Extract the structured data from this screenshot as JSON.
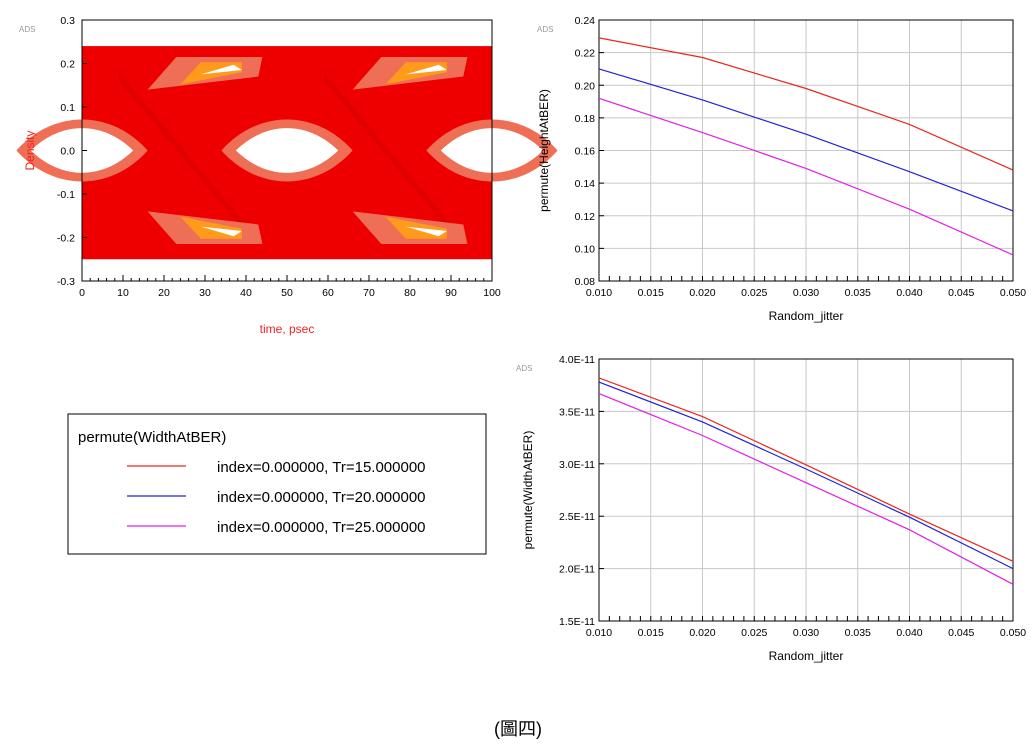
{
  "chart_data": [
    {
      "id": "eye",
      "type": "eye-diagram",
      "badge": "ADS",
      "xlabel": "time, psec",
      "ylabel": "Density",
      "xlim": [
        0,
        100
      ],
      "ylim": [
        -0.3,
        0.3
      ],
      "xticks": [
        0,
        10,
        20,
        30,
        40,
        50,
        60,
        70,
        80,
        90,
        100
      ],
      "yticks": [
        -0.3,
        -0.2,
        -0.1,
        0.0,
        0.1,
        0.2,
        0.3
      ],
      "ytick_labels": [
        "-0.3",
        "-0.2",
        "-0.1",
        "0.0",
        "0.1",
        "0.2",
        "0.3"
      ],
      "signal_levels": [
        -0.25,
        0.24
      ],
      "crossings": [
        25,
        75
      ],
      "colors": {
        "trace": "#ee0000",
        "density_mid": "#ee6f55",
        "density_high": "#ff9a1a",
        "label": "#ee2222"
      }
    },
    {
      "id": "height",
      "type": "line",
      "badge": "ADS",
      "xlabel": "Random_jitter",
      "ylabel": "permute(HeightAtBER)",
      "xlim": [
        0.01,
        0.05
      ],
      "ylim": [
        0.08,
        0.24
      ],
      "xticks": [
        0.01,
        0.015,
        0.02,
        0.025,
        0.03,
        0.035,
        0.04,
        0.045,
        0.05
      ],
      "xtick_labels": [
        "0.010",
        "0.015",
        "0.020",
        "0.025",
        "0.030",
        "0.035",
        "0.040",
        "0.045",
        "0.050"
      ],
      "yticks": [
        0.08,
        0.1,
        0.12,
        0.14,
        0.16,
        0.18,
        0.2,
        0.22,
        0.24
      ],
      "ytick_labels": [
        "0.08",
        "0.10",
        "0.12",
        "0.14",
        "0.16",
        "0.18",
        "0.20",
        "0.22",
        "0.24"
      ],
      "grid": true,
      "x": [
        0.01,
        0.02,
        0.03,
        0.04,
        0.05
      ],
      "series": [
        {
          "color": "#e8281e",
          "values": [
            0.229,
            0.217,
            0.198,
            0.176,
            0.148
          ]
        },
        {
          "color": "#2323d6",
          "values": [
            0.21,
            0.191,
            0.17,
            0.147,
            0.123
          ]
        },
        {
          "color": "#e31fe3",
          "values": [
            0.192,
            0.171,
            0.149,
            0.124,
            0.096
          ]
        }
      ]
    },
    {
      "id": "width",
      "type": "line",
      "badge": "ADS",
      "xlabel": "Random_jitter",
      "ylabel": "permute(WidthAtBER)",
      "xlim": [
        0.01,
        0.05
      ],
      "ylim": [
        1.5e-11,
        4e-11
      ],
      "xticks": [
        0.01,
        0.015,
        0.02,
        0.025,
        0.03,
        0.035,
        0.04,
        0.045,
        0.05
      ],
      "xtick_labels": [
        "0.010",
        "0.015",
        "0.020",
        "0.025",
        "0.030",
        "0.035",
        "0.040",
        "0.045",
        "0.050"
      ],
      "yticks": [
        1.5e-11,
        2e-11,
        2.5e-11,
        3e-11,
        3.5e-11,
        4e-11
      ],
      "ytick_labels": [
        "1.5E-11",
        "2.0E-11",
        "2.5E-11",
        "3.0E-11",
        "3.5E-11",
        "4.0E-11"
      ],
      "grid": true,
      "legend_placement": "left",
      "x": [
        0.01,
        0.02,
        0.03,
        0.04,
        0.05
      ],
      "series": [
        {
          "name": "index=0.000000, Tr=15.000000",
          "color": "#e8281e",
          "values": [
            3.82e-11,
            3.45e-11,
            2.99e-11,
            2.52e-11,
            2.07e-11
          ]
        },
        {
          "name": "index=0.000000, Tr=20.000000",
          "color": "#2323d6",
          "values": [
            3.78e-11,
            3.4e-11,
            2.95e-11,
            2.49e-11,
            2e-11
          ]
        },
        {
          "name": "index=0.000000, Tr=25.000000",
          "color": "#e31fe3",
          "values": [
            3.67e-11,
            3.27e-11,
            2.82e-11,
            2.37e-11,
            1.85e-11
          ]
        }
      ]
    }
  ],
  "legend": {
    "title": "permute(WidthAtBER)"
  },
  "caption": "(圖四)"
}
